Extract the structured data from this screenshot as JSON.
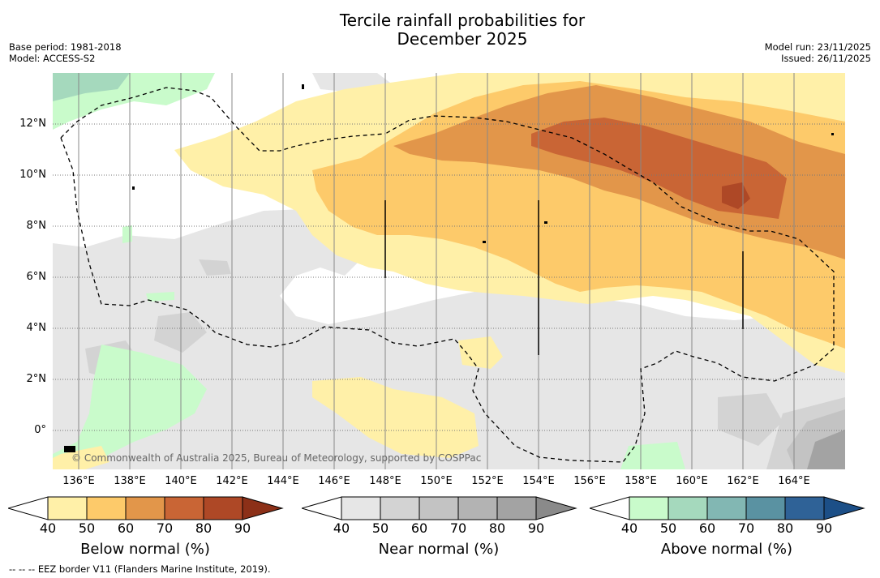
{
  "title_line1": "Tercile rainfall probabilities for",
  "title_line2": "December 2025",
  "base_period": "Base period: 1981-2018",
  "model": "Model: ACCESS-S2",
  "model_run": "Model run: 23/11/2025",
  "issued": "Issued: 26/11/2025",
  "copyright": "© Commonwealth of Australia 2025, Bureau of Meteorology, supported by COSPPac",
  "eez_note": "--  --  -- EEZ border V11 (Flanders Marine Institute, 2019).",
  "latitude_labels": [
    "12°N",
    "10°N",
    "8°N",
    "6°N",
    "4°N",
    "2°N",
    "0°"
  ],
  "longitude_labels": [
    "136°E",
    "138°E",
    "140°E",
    "142°E",
    "144°E",
    "146°E",
    "148°E",
    "150°E",
    "152°E",
    "154°E",
    "156°E",
    "158°E",
    "160°E",
    "162°E",
    "164°E"
  ],
  "colorbars": [
    {
      "title": "Below normal (%)",
      "ticks": [
        "40",
        "50",
        "60",
        "70",
        "80",
        "90"
      ],
      "colors": [
        "#fff0a8",
        "#fdca6a",
        "#e2964a",
        "#c96535",
        "#ae4826",
        "#8c3018"
      ]
    },
    {
      "title": "Near normal (%)",
      "ticks": [
        "40",
        "50",
        "60",
        "70",
        "80",
        "90"
      ],
      "colors": [
        "#e6e6e6",
        "#d3d3d3",
        "#c3c3c3",
        "#b3b3b3",
        "#a3a3a3",
        "#8a8a8a"
      ]
    },
    {
      "title": "Above normal (%)",
      "ticks": [
        "40",
        "50",
        "60",
        "70",
        "80",
        "90"
      ],
      "colors": [
        "#c9fbcb",
        "#a5d9bd",
        "#82b7b3",
        "#5a92a2",
        "#2f6297",
        "#1c4f87"
      ]
    }
  ],
  "palette": {
    "water": "#ffffff",
    "grid": "#777777",
    "eez": "#000000"
  }
}
